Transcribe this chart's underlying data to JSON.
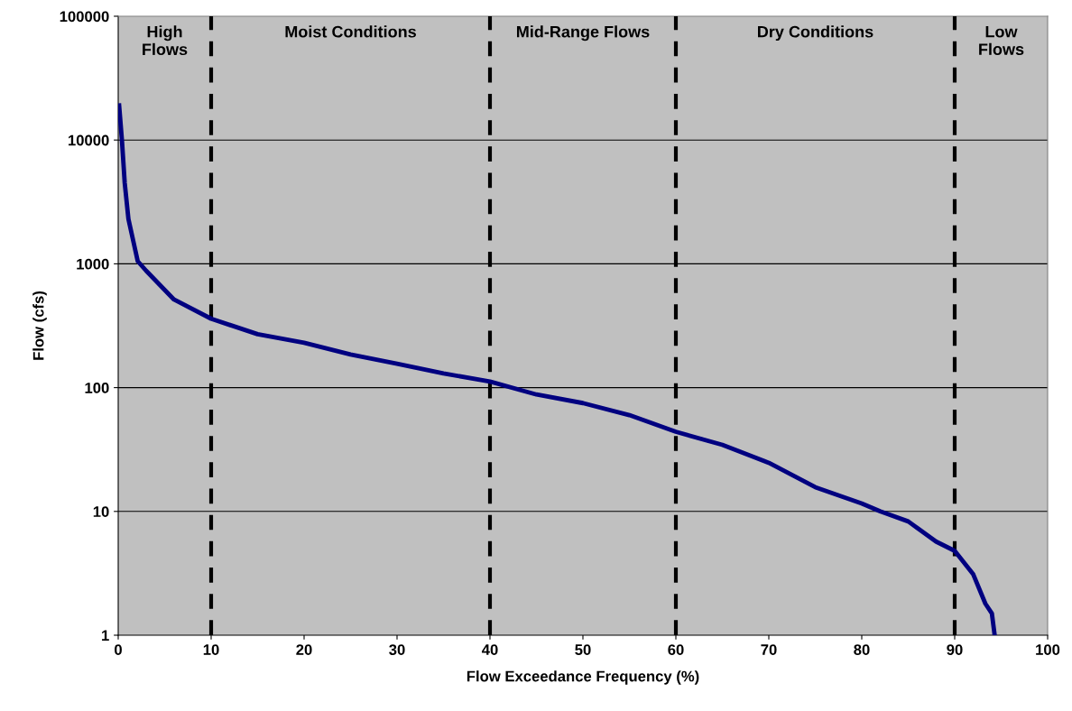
{
  "chart_data": {
    "type": "line",
    "xlabel": "Flow Exceedance Frequency (%)",
    "ylabel": "Flow (cfs)",
    "x": [
      0.1,
      0.4,
      0.7,
      1.1,
      2.1,
      3,
      6,
      10,
      15,
      20,
      25,
      30,
      35,
      40,
      45,
      50,
      55,
      60,
      65,
      70,
      75,
      80,
      82,
      85,
      88,
      90,
      92,
      93.3,
      94,
      94.3
    ],
    "series": [
      {
        "color": "#000080",
        "values": [
          19000,
          10000,
          4500,
          2300,
          1050,
          880,
          515,
          360,
          270,
          230,
          185,
          156,
          130,
          112,
          88,
          75,
          60,
          44,
          34.5,
          24.7,
          15.7,
          11.6,
          10,
          8.3,
          5.7,
          4.8,
          3.1,
          1.8,
          1.5,
          1
        ]
      }
    ],
    "log": "y",
    "xlim": [
      0,
      100
    ],
    "ylim": [
      1,
      100000
    ],
    "xticks": [
      0,
      10,
      20,
      30,
      40,
      50,
      60,
      70,
      80,
      90,
      100
    ],
    "yticks": [
      1,
      10,
      100,
      1000,
      10000,
      100000
    ],
    "grid": "y",
    "marker": "none",
    "line_style": "solid",
    "ref_lines": [
      {
        "axis": "x",
        "value": 10,
        "color": "#000000",
        "line_style": "dashed"
      },
      {
        "axis": "x",
        "value": 40,
        "color": "#000000",
        "line_style": "dashed"
      },
      {
        "axis": "x",
        "value": 60,
        "color": "#000000",
        "line_style": "dashed"
      },
      {
        "axis": "x",
        "value": 90,
        "color": "#000000",
        "line_style": "dashed"
      }
    ],
    "bands": [
      {
        "axis": "x",
        "from": 0,
        "to": 10,
        "label": "High\nFlows",
        "color": "#c0c0c0"
      },
      {
        "axis": "x",
        "from": 10,
        "to": 40,
        "label": "Moist Conditions",
        "color": "#c0c0c0"
      },
      {
        "axis": "x",
        "from": 40,
        "to": 60,
        "label": "Mid-Range Flows",
        "color": "#c0c0c0"
      },
      {
        "axis": "x",
        "from": 60,
        "to": 90,
        "label": "Dry Conditions",
        "color": "#c0c0c0"
      },
      {
        "axis": "x",
        "from": 90,
        "to": 100,
        "label": "Low\nFlows",
        "color": "#c0c0c0"
      }
    ]
  }
}
